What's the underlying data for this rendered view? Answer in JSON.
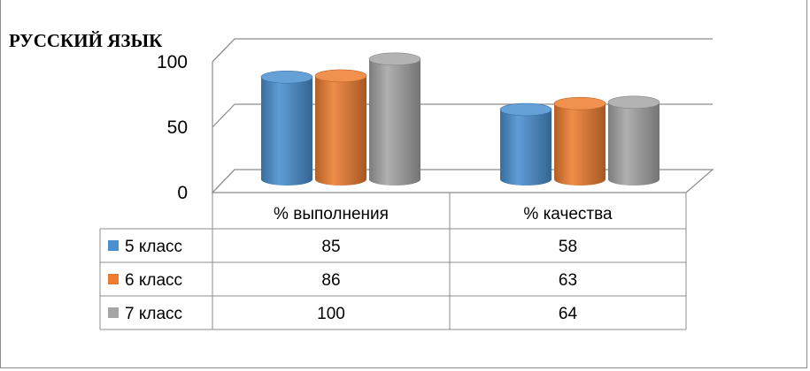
{
  "chart_data": {
    "type": "bar",
    "title": "РУССКИЙ ЯЗЫК",
    "categories": [
      "% выполнения",
      "% качества"
    ],
    "series": [
      {
        "name": "5 класс",
        "values": [
          85,
          58
        ],
        "color": "#4a90d0"
      },
      {
        "name": "6 класс",
        "values": [
          86,
          63
        ],
        "color": "#ee7d31"
      },
      {
        "name": "7 класс",
        "values": [
          100,
          64
        ],
        "color": "#a5a5a5"
      }
    ],
    "y_ticks": [
      "0",
      "50",
      "100"
    ],
    "ylim": [
      0,
      100
    ],
    "xlabel": "",
    "ylabel": "",
    "legend": "data-table",
    "grid": true,
    "style": "3d-cylinder"
  }
}
